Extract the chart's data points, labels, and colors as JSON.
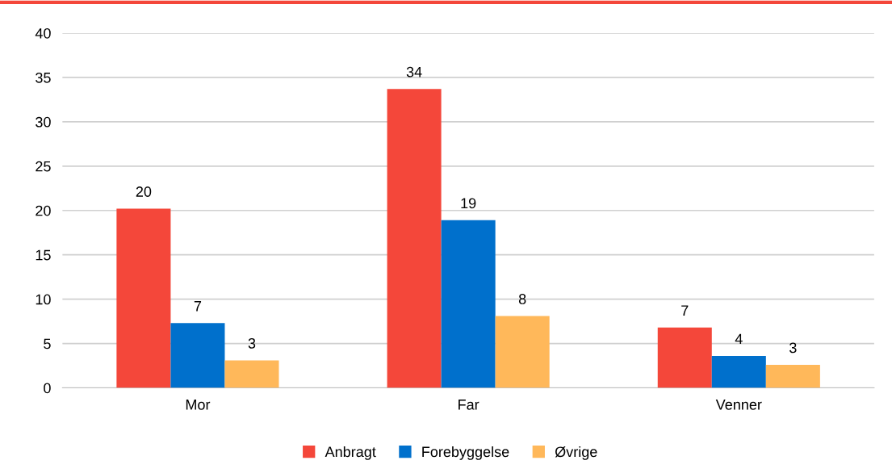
{
  "chart_data": {
    "type": "bar",
    "categories": [
      "Mor",
      "Far",
      "Venner"
    ],
    "series": [
      {
        "name": "Anbragt",
        "color": "#f4473a",
        "values": [
          20.2,
          33.7,
          6.8
        ],
        "value_labels": [
          "20",
          "34",
          "7"
        ]
      },
      {
        "name": "Forebyggelse",
        "color": "#0070cc",
        "values": [
          7.3,
          18.9,
          3.6
        ],
        "value_labels": [
          "7",
          "19",
          "4"
        ]
      },
      {
        "name": "Øvrige",
        "color": "#ffb85a",
        "values": [
          3.1,
          8.1,
          2.6
        ],
        "value_labels": [
          "3",
          "8",
          "3"
        ]
      }
    ],
    "ylim": [
      0,
      40
    ],
    "yticks": [
      0,
      5,
      10,
      15,
      20,
      25,
      30,
      35,
      40
    ],
    "grid": "y",
    "legend": "bottom"
  }
}
